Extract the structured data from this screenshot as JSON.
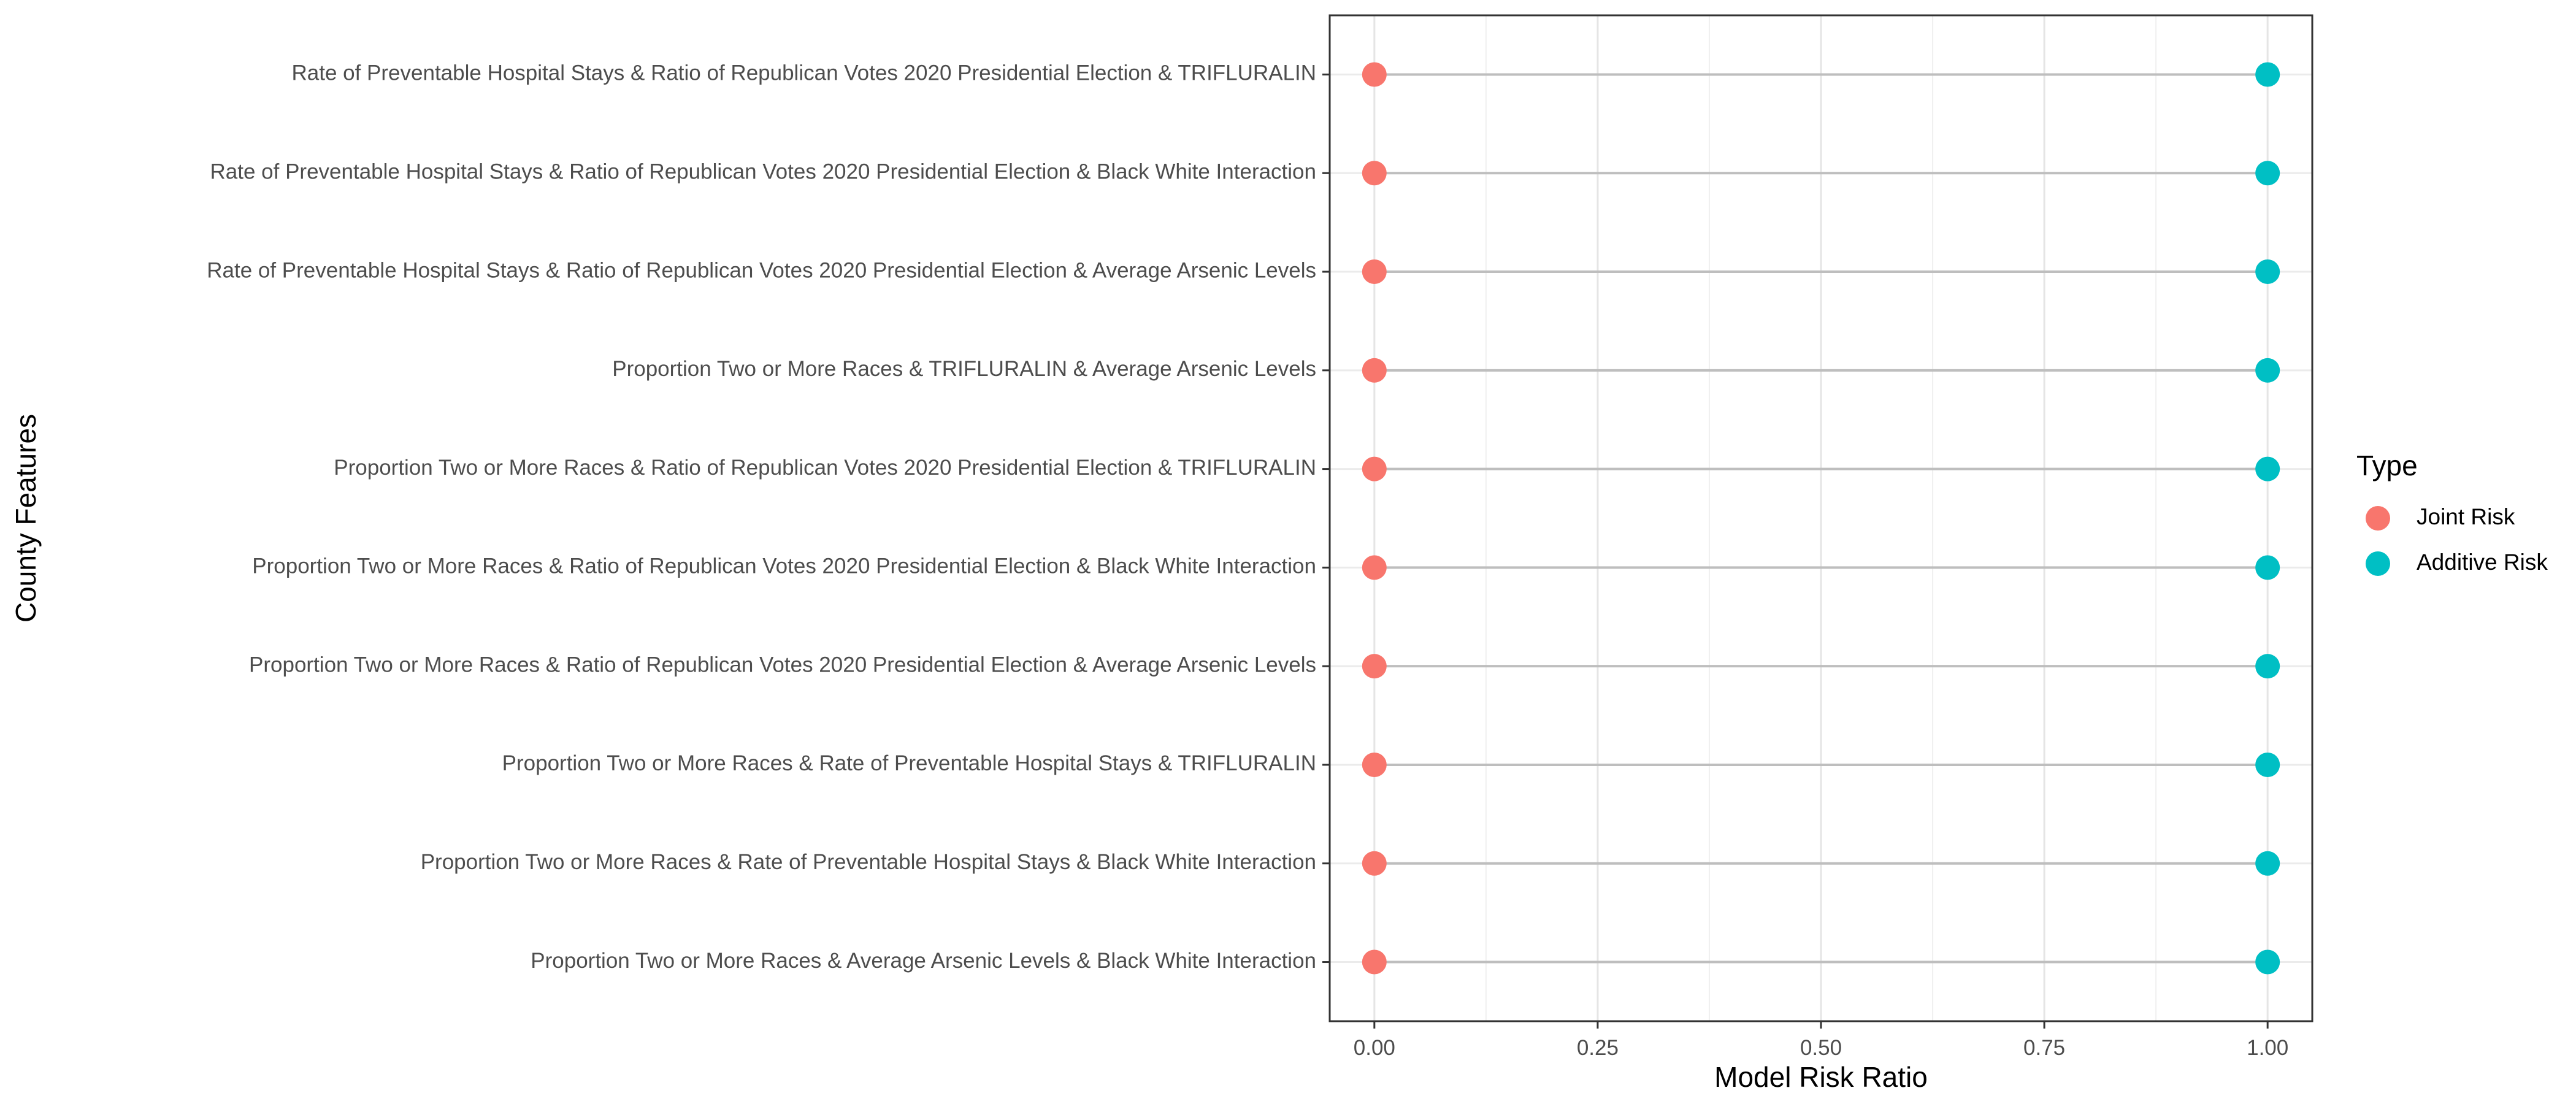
{
  "chart_data": {
    "type": "dot",
    "xlabel": "Model Risk Ratio",
    "ylabel": "County Features",
    "xlim": [
      -0.05,
      1.05
    ],
    "x_ticks": [
      0.0,
      0.25,
      0.5,
      0.75,
      1.0
    ],
    "x_tick_labels": [
      "0.00",
      "0.25",
      "0.50",
      "0.75",
      "1.00"
    ],
    "grid": true,
    "legend": {
      "title": "Type",
      "placement": "right",
      "entries": [
        "Joint Risk",
        "Additive Risk"
      ]
    },
    "categories": [
      "Rate of Preventable Hospital Stays & Ratio of Republican Votes 2020 Presidential Election & TRIFLURALIN",
      "Rate of Preventable Hospital Stays & Ratio of Republican Votes 2020 Presidential Election & Black White Interaction",
      "Rate of Preventable Hospital Stays & Ratio of Republican Votes 2020 Presidential Election & Average Arsenic Levels",
      "Proportion Two or More Races & TRIFLURALIN & Average Arsenic Levels",
      "Proportion Two or More Races & Ratio of Republican Votes 2020 Presidential Election & TRIFLURALIN",
      "Proportion Two or More Races & Ratio of Republican Votes 2020 Presidential Election & Black White Interaction",
      "Proportion Two or More Races & Ratio of Republican Votes 2020 Presidential Election & Average Arsenic Levels",
      "Proportion Two or More Races & Rate of Preventable Hospital Stays & TRIFLURALIN",
      "Proportion Two or More Races & Rate of Preventable Hospital Stays & Black White Interaction",
      "Proportion Two or More Races & Average Arsenic Levels & Black White Interaction"
    ],
    "series": [
      {
        "name": "Joint Risk",
        "color": "#F8766D",
        "values": [
          0,
          0,
          0,
          0,
          0,
          0,
          0,
          0,
          0,
          0
        ]
      },
      {
        "name": "Additive Risk",
        "color": "#00BFC4",
        "values": [
          1,
          1,
          1,
          1,
          1,
          1,
          1,
          1,
          1,
          1
        ]
      }
    ]
  }
}
